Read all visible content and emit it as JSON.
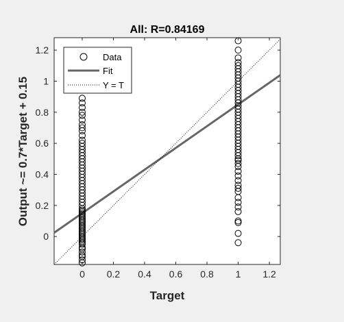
{
  "chart_data": {
    "type": "scatter",
    "title": "All: R=0.84169",
    "xlabel": "Target",
    "ylabel": "Output ~= 0.7*Target + 0.15",
    "xlim": [
      -0.18,
      1.27
    ],
    "ylim": [
      -0.18,
      1.28
    ],
    "x_ticks": [
      "0",
      "0.2",
      "0.4",
      "0.6",
      "0.8",
      "1",
      "1.2"
    ],
    "y_ticks": [
      "0",
      "0.2",
      "0.4",
      "0.6",
      "0.8",
      "1",
      "1.2"
    ],
    "grid": false,
    "legend_position": "top-left",
    "legend": [
      {
        "label": "Data",
        "marker": "circle"
      },
      {
        "label": "Fit",
        "line": "solid"
      },
      {
        "label": "Y = T",
        "line": "dotted"
      }
    ],
    "fit": {
      "slope": 0.7,
      "intercept": 0.15
    },
    "identity_line": {
      "slope": 1,
      "intercept": 0
    },
    "series": [
      {
        "name": "Data",
        "x_value": 0,
        "y": [
          -0.17,
          -0.15,
          -0.13,
          -0.12,
          -0.1,
          -0.08,
          -0.07,
          -0.05,
          -0.04,
          -0.03,
          -0.02,
          -0.01,
          0.0,
          0.01,
          0.02,
          0.03,
          0.04,
          0.05,
          0.06,
          0.07,
          0.08,
          0.09,
          0.1,
          0.11,
          0.12,
          0.13,
          0.14,
          0.15,
          0.16,
          0.17,
          0.18,
          0.2,
          0.22,
          0.24,
          0.26,
          0.28,
          0.3,
          0.32,
          0.34,
          0.36,
          0.38,
          0.4,
          0.42,
          0.44,
          0.46,
          0.48,
          0.5,
          0.52,
          0.54,
          0.56,
          0.58,
          0.6,
          0.62,
          0.65,
          0.68,
          0.7,
          0.72,
          0.75,
          0.78,
          0.8,
          0.83,
          0.86,
          0.89
        ]
      },
      {
        "name": "Data",
        "x_value": 1,
        "y": [
          -0.04,
          0.02,
          0.09,
          0.1,
          0.16,
          0.19,
          0.22,
          0.25,
          0.29,
          0.31,
          0.33,
          0.36,
          0.39,
          0.42,
          0.45,
          0.47,
          0.49,
          0.5,
          0.52,
          0.54,
          0.56,
          0.58,
          0.6,
          0.62,
          0.64,
          0.66,
          0.68,
          0.7,
          0.72,
          0.74,
          0.76,
          0.78,
          0.8,
          0.82,
          0.84,
          0.86,
          0.88,
          0.9,
          0.92,
          0.94,
          0.96,
          0.98,
          1.0,
          1.02,
          1.04,
          1.06,
          1.08,
          1.1,
          1.12,
          1.15,
          1.2,
          1.26
        ]
      }
    ]
  },
  "colors": {
    "background": "#f0f0f0",
    "axes_background": "#ffffff",
    "fit_line": "#666666",
    "marker": "#000000"
  }
}
